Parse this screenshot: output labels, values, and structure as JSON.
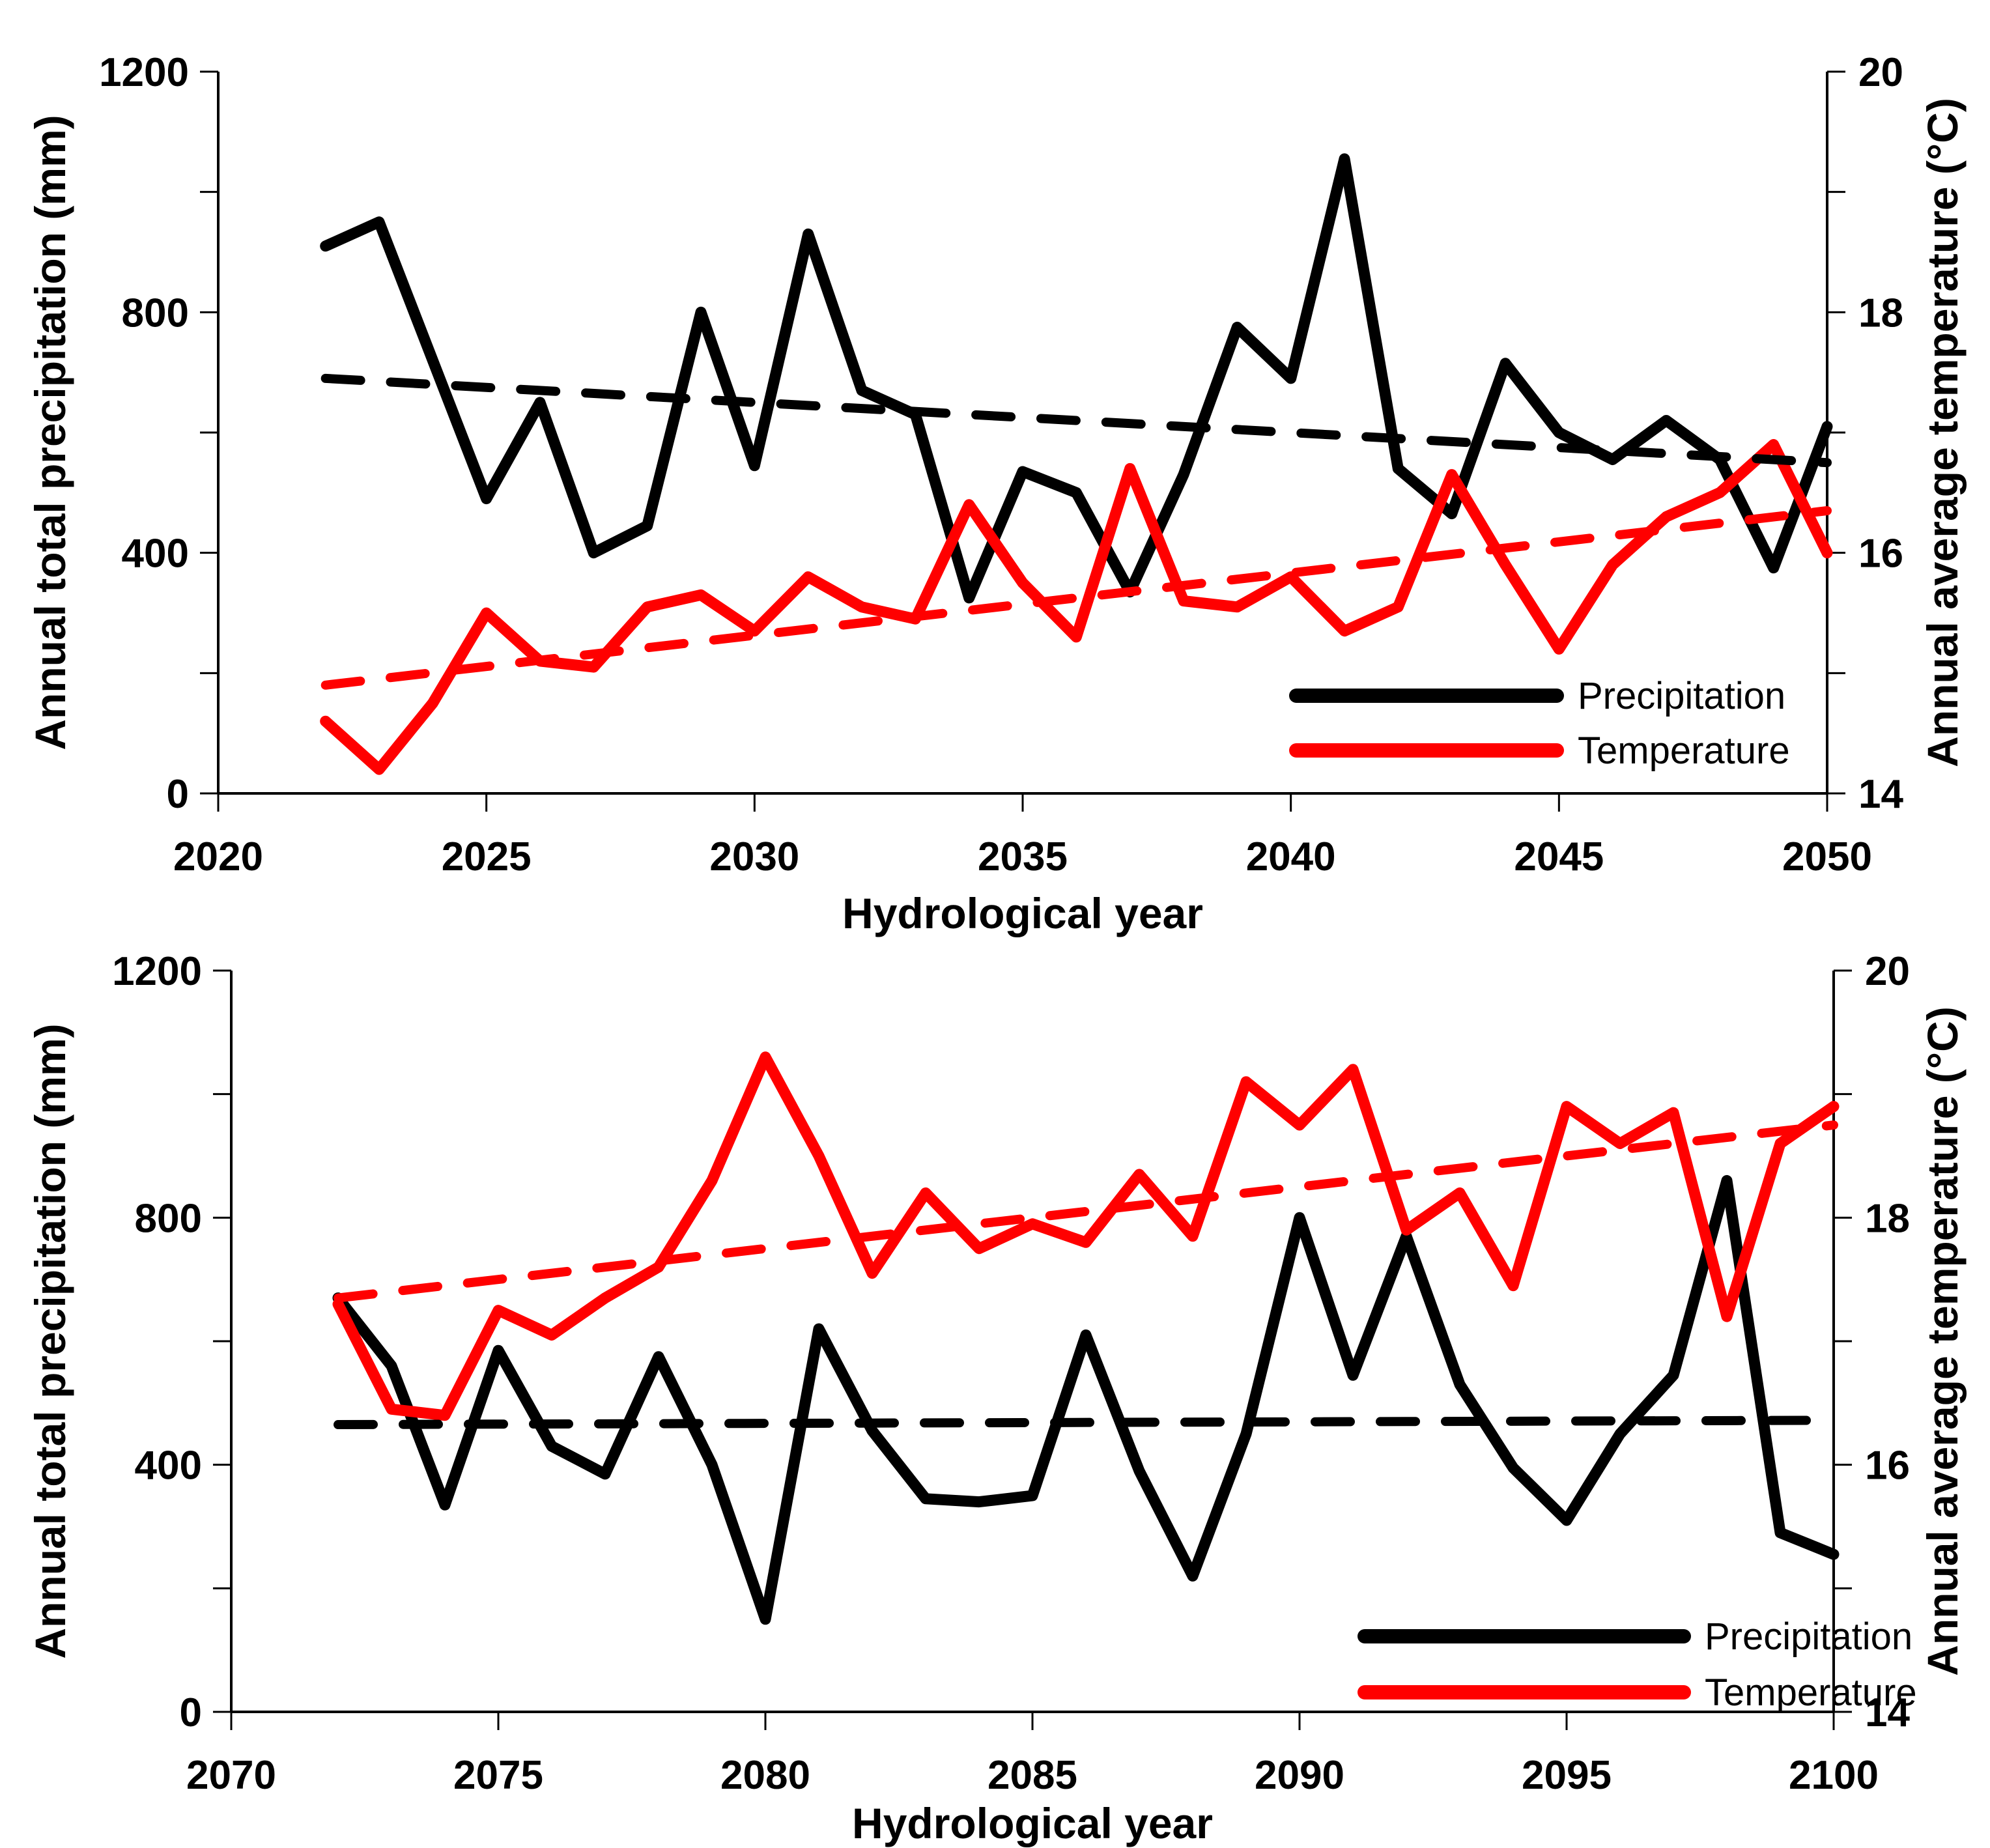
{
  "figure": {
    "background": "#ffffff",
    "series_colors": {
      "precipitation": "#000000",
      "temperature": "#ff0000"
    }
  },
  "chart_data": [
    {
      "type": "line",
      "title": "",
      "xlabel": "Hydrological year",
      "ylabel_left": "Annual total precipitation (mm)",
      "ylabel_right": "Annual average temperature (°C)",
      "xlim": [
        2020,
        2050
      ],
      "ylim_left": [
        0,
        1200
      ],
      "ylim_right": [
        14,
        20
      ],
      "x_ticks": [
        2020,
        2025,
        2030,
        2035,
        2040,
        2045,
        2050
      ],
      "y_ticks_left": [
        0,
        400,
        800,
        1200
      ],
      "y_ticks_right": [
        14,
        16,
        18,
        20
      ],
      "grid": false,
      "legend_position": "lower right",
      "years": [
        2022,
        2023,
        2024,
        2025,
        2026,
        2027,
        2028,
        2029,
        2030,
        2031,
        2032,
        2033,
        2034,
        2035,
        2036,
        2037,
        2038,
        2039,
        2040,
        2041,
        2042,
        2043,
        2044,
        2045,
        2046,
        2047,
        2048,
        2049,
        2050
      ],
      "series": [
        {
          "name": "Precipitation",
          "axis": "left",
          "color": "#000000",
          "style": "solid",
          "values": [
            910,
            950,
            720,
            490,
            650,
            400,
            445,
            800,
            545,
            930,
            670,
            630,
            325,
            535,
            500,
            335,
            530,
            775,
            690,
            1055,
            540,
            465,
            715,
            600,
            555,
            620,
            555,
            375,
            610
          ]
        },
        {
          "name": "Temperature",
          "axis": "right",
          "color": "#ff0000",
          "style": "solid",
          "values": [
            14.6,
            14.2,
            14.75,
            15.5,
            15.1,
            15.05,
            15.55,
            15.65,
            15.35,
            15.8,
            15.55,
            15.45,
            16.4,
            15.75,
            15.3,
            16.7,
            15.6,
            15.55,
            15.8,
            15.35,
            15.55,
            16.65,
            15.9,
            15.2,
            15.9,
            16.3,
            16.5,
            16.9,
            16.0
          ]
        },
        {
          "name": "Precipitation trend",
          "axis": "left",
          "color": "#000000",
          "style": "dashed",
          "trend_endpoints": [
            690,
            550
          ]
        },
        {
          "name": "Temperature trend",
          "axis": "right",
          "color": "#ff0000",
          "style": "dashed",
          "trend_endpoints": [
            14.9,
            16.35
          ]
        }
      ],
      "legend": {
        "items": [
          "Precipitation",
          "Temperature"
        ]
      }
    },
    {
      "type": "line",
      "title": "",
      "xlabel": "Hydrological year",
      "ylabel_left": "Annual total precipitation (mm)",
      "ylabel_right": "Annual average temperature (°C)",
      "xlim": [
        2070,
        2100
      ],
      "ylim_left": [
        0,
        1200
      ],
      "ylim_right": [
        14,
        20
      ],
      "x_ticks": [
        2070,
        2075,
        2080,
        2085,
        2090,
        2095,
        2100
      ],
      "y_ticks_left": [
        0,
        400,
        800,
        1200
      ],
      "y_ticks_right": [
        14,
        16,
        18,
        20
      ],
      "grid": false,
      "legend_position": "lower right",
      "years": [
        2072,
        2073,
        2074,
        2075,
        2076,
        2077,
        2078,
        2079,
        2080,
        2081,
        2082,
        2083,
        2084,
        2085,
        2086,
        2087,
        2088,
        2089,
        2090,
        2091,
        2092,
        2093,
        2094,
        2095,
        2096,
        2097,
        2098,
        2099,
        2100
      ],
      "series": [
        {
          "name": "Precipitation",
          "axis": "left",
          "color": "#000000",
          "style": "solid",
          "values": [
            670,
            560,
            335,
            585,
            430,
            385,
            575,
            400,
            150,
            620,
            455,
            345,
            340,
            350,
            610,
            390,
            220,
            450,
            800,
            545,
            770,
            530,
            395,
            310,
            450,
            545,
            860,
            290,
            255
          ]
        },
        {
          "name": "Temperature",
          "axis": "right",
          "color": "#ff0000",
          "style": "solid",
          "values": [
            17.3,
            16.45,
            16.4,
            17.25,
            17.05,
            17.35,
            17.6,
            18.3,
            19.3,
            18.5,
            17.55,
            18.2,
            17.75,
            17.95,
            17.8,
            18.35,
            17.85,
            19.1,
            18.75,
            19.2,
            17.9,
            18.2,
            17.45,
            18.9,
            18.6,
            18.85,
            17.2,
            18.6,
            18.9
          ]
        },
        {
          "name": "Precipitation trend",
          "axis": "left",
          "color": "#000000",
          "style": "dashed",
          "trend_endpoints": [
            465,
            472
          ]
        },
        {
          "name": "Temperature trend",
          "axis": "right",
          "color": "#ff0000",
          "style": "dashed",
          "trend_endpoints": [
            17.35,
            18.75
          ]
        }
      ],
      "legend": {
        "items": [
          "Precipitation",
          "Temperature"
        ]
      }
    }
  ]
}
